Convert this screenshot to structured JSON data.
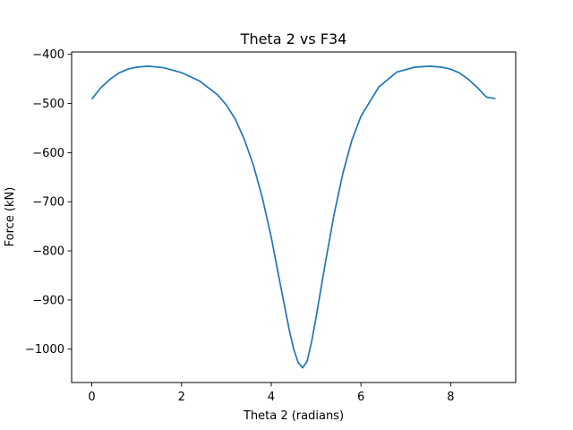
{
  "chart_data": {
    "type": "line",
    "title": "Theta 2 vs F34",
    "xlabel": "Theta 2 (radians)",
    "ylabel": "Force (kN)",
    "xlim": [
      -0.45,
      9.45
    ],
    "ylim": [
      -1068,
      -395
    ],
    "xticks": [
      0,
      2,
      4,
      6,
      8
    ],
    "xtick_labels": [
      "0",
      "2",
      "4",
      "6",
      "8"
    ],
    "yticks": [
      -400,
      -500,
      -600,
      -700,
      -800,
      -900,
      -1000
    ],
    "ytick_labels": [
      "−400",
      "−500",
      "−600",
      "−700",
      "−800",
      "−900",
      "−1000"
    ],
    "grid": false,
    "series": [
      {
        "color": "#1f77b4",
        "x": [
          0,
          0.2,
          0.4,
          0.6,
          0.8,
          1.0,
          1.26,
          1.6,
          2.0,
          2.4,
          2.8,
          3.0,
          3.2,
          3.4,
          3.6,
          3.8,
          4.0,
          4.2,
          4.4,
          4.5,
          4.6,
          4.7,
          4.8,
          4.9,
          5.0,
          5.2,
          5.4,
          5.6,
          5.8,
          6.0,
          6.4,
          6.8,
          7.2,
          7.54,
          7.8,
          8.0,
          8.2,
          8.4,
          8.6,
          8.8,
          9.0
        ],
        "y": [
          -491,
          -468,
          -451,
          -438,
          -430,
          -426,
          -424,
          -427,
          -437,
          -454,
          -482,
          -503,
          -532,
          -573,
          -625,
          -691,
          -772,
          -867,
          -960,
          -1000,
          -1027,
          -1038,
          -1025,
          -985,
          -935,
          -828,
          -726,
          -641,
          -574,
          -526,
          -466,
          -436,
          -426,
          -424,
          -426,
          -430,
          -438,
          -451,
          -468,
          -487,
          -490
        ]
      }
    ]
  }
}
